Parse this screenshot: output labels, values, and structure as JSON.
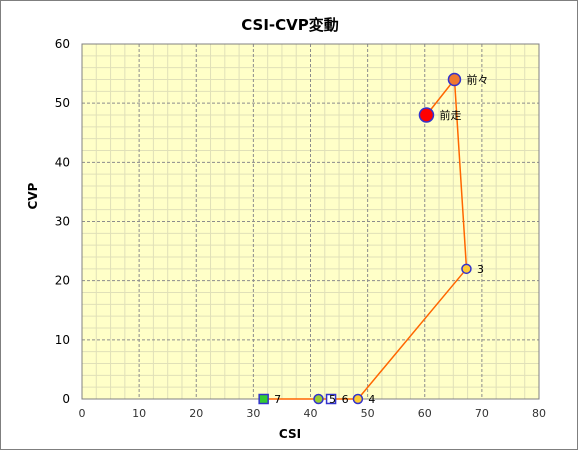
{
  "chart_data": {
    "type": "scatter",
    "title": "CSI-CVP変動",
    "xlabel": "CSI",
    "ylabel": "CVP",
    "xlim": [
      0,
      80
    ],
    "ylim": [
      0,
      60
    ],
    "xticks": [
      "0",
      "10",
      "20",
      "30",
      "40",
      "50",
      "60",
      "70",
      "80"
    ],
    "yticks": [
      "0",
      "10",
      "20",
      "30",
      "40",
      "50",
      "60"
    ],
    "grid": true,
    "line_color": "#ff6600",
    "plot_background": "#ffffc8",
    "path": [
      {
        "label": "前走",
        "x": 60.3,
        "y": 48,
        "marker": "circle",
        "fill": "#ff0000",
        "stroke": "#3333cc",
        "size": "large"
      },
      {
        "label": "前々",
        "x": 65.2,
        "y": 54,
        "marker": "circle",
        "fill": "#f07830",
        "stroke": "#3333cc",
        "size": "medium"
      },
      {
        "label": "3",
        "x": 67.3,
        "y": 22,
        "marker": "circle",
        "fill": "#ffcc33",
        "stroke": "#3333cc",
        "size": "small"
      },
      {
        "label": "4",
        "x": 48.3,
        "y": 0,
        "marker": "circle",
        "fill": "#ffcc33",
        "stroke": "#3333cc",
        "size": "small"
      },
      {
        "label": "6",
        "x": 43.6,
        "y": 0,
        "marker": "square",
        "fill": "#ffffff",
        "stroke": "#3333cc",
        "size": "small"
      },
      {
        "label": "5",
        "x": 41.4,
        "y": 0,
        "marker": "circle",
        "fill": "#99cc33",
        "stroke": "#3333cc",
        "size": "small"
      },
      {
        "label": "7",
        "x": 31.8,
        "y": 0,
        "marker": "square",
        "fill": "#33cc33",
        "stroke": "#3333cc",
        "size": "small"
      }
    ]
  }
}
